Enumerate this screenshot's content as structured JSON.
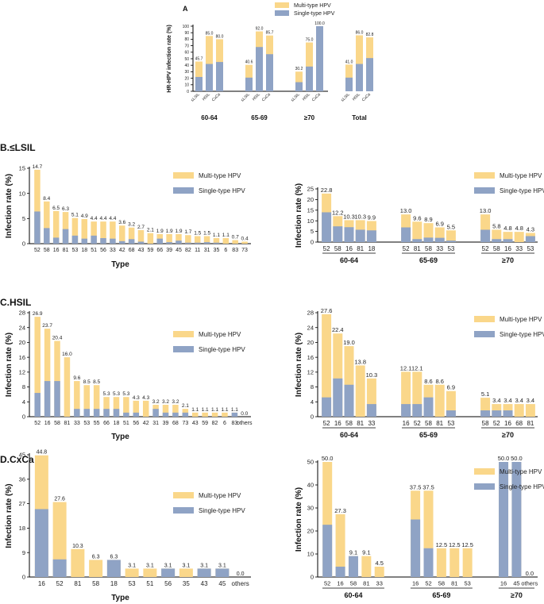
{
  "colors": {
    "multi": "#FAD78A",
    "single": "#8FA3C5",
    "axis": "#000000"
  },
  "chart_data": [
    {
      "id": "A",
      "type": "bar",
      "stacked": true,
      "panel_label": "A",
      "ylabel": "HR-HPV infection rate (%)",
      "ylim": [
        0,
        100
      ],
      "yticks": [
        0,
        10,
        20,
        30,
        40,
        50,
        60,
        70,
        80,
        90,
        100
      ],
      "legend": [
        "Multi-type HPV",
        "Single-type HPV"
      ],
      "groups": [
        {
          "name": "60-64",
          "categories": [
            "≤LSIL",
            "HSIL",
            "CxCa"
          ],
          "total": [
            45.7,
            85.0,
            80.0
          ],
          "single": [
            22.0,
            42.0,
            45.0
          ]
        },
        {
          "name": "65-69",
          "categories": [
            "≤LSIL",
            "HSIL",
            "CxCa"
          ],
          "total": [
            40.6,
            92.0,
            85.7
          ],
          "single": [
            21.0,
            68.0,
            57.0
          ]
        },
        {
          "name": "≥70",
          "categories": [
            "≤LSIL",
            "HSIL",
            "CxCa"
          ],
          "total": [
            30.2,
            75.0,
            100.0
          ],
          "single": [
            14.0,
            38.0,
            100.0
          ]
        },
        {
          "name": "Total",
          "categories": [
            "≤LSIL",
            "HSIL",
            "CxCa"
          ],
          "total": [
            41.0,
            86.0,
            82.8
          ],
          "single": [
            21.0,
            42.0,
            51.0
          ]
        }
      ]
    },
    {
      "id": "B1",
      "type": "bar",
      "stacked": true,
      "panel_label": "B.≤LSIL",
      "xlabel": "Type",
      "ylabel": "Infection rate (%)",
      "ylim": [
        0,
        15
      ],
      "yticks": [
        0,
        5,
        10,
        15
      ],
      "legend": [
        "Multi-type HPV",
        "Single-type HPV"
      ],
      "categories": [
        "52",
        "58",
        "16",
        "81",
        "53",
        "18",
        "51",
        "56",
        "33",
        "42",
        "68",
        "43",
        "59",
        "66",
        "39",
        "45",
        "82",
        "11",
        "31",
        "35",
        "6",
        "83",
        "73"
      ],
      "total": [
        14.7,
        8.4,
        6.5,
        6.3,
        5.1,
        4.9,
        4.4,
        4.4,
        4.4,
        3.6,
        3.2,
        2.7,
        2.1,
        1.9,
        1.9,
        1.9,
        1.7,
        1.5,
        1.5,
        1.1,
        1.1,
        0.7,
        0.4
      ],
      "single": [
        6.4,
        3.1,
        1.2,
        2.9,
        1.6,
        1.0,
        1.6,
        1.1,
        1.0,
        0.5,
        0.9,
        0.4,
        0.0,
        1.0,
        0.3,
        0.6,
        0.2,
        0.2,
        0.3,
        0.2,
        0.0,
        0.0,
        0.0
      ],
      "labels": [
        "14.7",
        "8.4",
        "6.5",
        "6.3",
        "5.1",
        "4.9",
        "4.4",
        "4.4",
        "4.4",
        "3.6",
        "3.2",
        "2.7",
        "2.1",
        "1.9",
        "1.9",
        "1.9",
        "1.7",
        "1.5",
        "1.5",
        "1.1",
        "1.1",
        "0.7",
        "0.4"
      ]
    },
    {
      "id": "B2",
      "type": "bar",
      "stacked": true,
      "ylabel": "Infection rate (%)",
      "ylim": [
        0,
        25
      ],
      "yticks": [
        0,
        5,
        10,
        15,
        20,
        25
      ],
      "legend": [
        "Multi-type HPV",
        "Single-type HPV"
      ],
      "groups": [
        {
          "name": "60-64",
          "categories": [
            "52",
            "58",
            "16",
            "81",
            "18"
          ],
          "total": [
            22.8,
            12.2,
            10.3,
            10.3,
            9.9
          ],
          "single": [
            14.0,
            7.4,
            7.0,
            5.8,
            5.5
          ],
          "labels": [
            "22.8",
            "12.2",
            "10.3",
            "10.3",
            "9.9"
          ]
        },
        {
          "name": "65-69",
          "categories": [
            "52",
            "81",
            "58",
            "33",
            "53"
          ],
          "total": [
            13.0,
            9.6,
            8.9,
            6.9,
            5.5
          ],
          "single": [
            6.9,
            1.4,
            2.1,
            2.0,
            0.7
          ],
          "labels": [
            "13.0",
            "9.6",
            "8.9",
            "6.9",
            "5.5"
          ]
        },
        {
          "name": "≥70",
          "categories": [
            "52",
            "58",
            "16",
            "33",
            "53"
          ],
          "total": [
            13.0,
            5.8,
            4.8,
            4.8,
            4.3
          ],
          "single": [
            5.8,
            1.4,
            1.4,
            0.0,
            2.8
          ],
          "labels": [
            "13.0",
            "5.8",
            "4.8",
            "4.8",
            "4.3"
          ]
        }
      ]
    },
    {
      "id": "C1",
      "type": "bar",
      "stacked": true,
      "panel_label": "C.HSIL",
      "xlabel": "Type",
      "ylabel": "Infection rate (%)",
      "ylim": [
        0,
        28
      ],
      "yticks": [
        0,
        4,
        8,
        12,
        16,
        20,
        24,
        28
      ],
      "legend": [
        "Multi-type HPV",
        "Single-type HPV"
      ],
      "categories": [
        "52",
        "16",
        "58",
        "81",
        "33",
        "53",
        "55",
        "66",
        "18",
        "51",
        "56",
        "42",
        "31",
        "39",
        "68",
        "73",
        "43",
        "59",
        "82",
        "6",
        "83",
        "others"
      ],
      "total": [
        26.9,
        23.7,
        20.4,
        16.0,
        9.6,
        8.5,
        8.5,
        5.3,
        5.3,
        5.3,
        4.3,
        4.3,
        3.2,
        3.2,
        3.2,
        2.1,
        1.1,
        1.1,
        1.1,
        1.1,
        1.1,
        0.0
      ],
      "single": [
        6.4,
        9.6,
        9.6,
        0.0,
        2.1,
        2.1,
        2.1,
        2.1,
        2.1,
        1.1,
        1.1,
        0.0,
        2.1,
        1.1,
        1.1,
        1.1,
        0.0,
        0.0,
        0.0,
        0.0,
        1.1,
        0.0
      ],
      "labels": [
        "26.9",
        "23.7",
        "20.4",
        "16.0",
        "9.6",
        "8.5",
        "8.5",
        "5.3",
        "5.3",
        "5.3",
        "4.3",
        "4.3",
        "3.2",
        "3.2",
        "3.2",
        "2.1",
        "1.1",
        "1.1",
        "1.1",
        "1.1",
        "1.1",
        "0.0"
      ]
    },
    {
      "id": "C2",
      "type": "bar",
      "stacked": true,
      "ylabel": "Infection rate (%)",
      "ylim": [
        0,
        28
      ],
      "yticks": [
        0,
        4,
        8,
        12,
        16,
        20,
        24,
        28
      ],
      "legend": [
        "Multi-type HPV",
        "Single-type HPV"
      ],
      "groups": [
        {
          "name": "60-64",
          "categories": [
            "52",
            "16",
            "58",
            "81",
            "33"
          ],
          "total": [
            27.6,
            22.4,
            19.0,
            13.8,
            10.3
          ],
          "single": [
            5.2,
            10.3,
            8.6,
            0.0,
            3.4
          ],
          "labels": [
            "27.6",
            "22.4",
            "19.0",
            "13.8",
            "10.3"
          ]
        },
        {
          "name": "65-69",
          "categories": [
            "16",
            "52",
            "58",
            "81",
            "53"
          ],
          "total": [
            12.1,
            12.1,
            8.6,
            8.6,
            6.9
          ],
          "single": [
            3.4,
            3.4,
            5.2,
            0.0,
            1.7
          ],
          "labels": [
            "12.1",
            "12.1",
            "8.6",
            "8.6",
            "6.9"
          ]
        },
        {
          "name": "≥70",
          "categories": [
            "58",
            "52",
            "16",
            "68",
            "81"
          ],
          "total": [
            5.1,
            3.4,
            3.4,
            3.4,
            3.4
          ],
          "single": [
            1.7,
            1.7,
            1.7,
            0.0,
            0.0
          ],
          "labels": [
            "5.1",
            "3.4",
            "3.4",
            "3.4",
            "3.4"
          ]
        }
      ]
    },
    {
      "id": "D1",
      "type": "bar",
      "stacked": true,
      "panel_label": "D.CxCa",
      "xlabel": "Type",
      "ylabel": "Infection rate (%)",
      "ylim": [
        0,
        45
      ],
      "yticks": [
        0,
        9,
        18,
        27,
        36,
        45
      ],
      "legend": [
        "Multi-type HPV",
        "Single-type HPV"
      ],
      "categories": [
        "16",
        "52",
        "81",
        "58",
        "18",
        "53",
        "51",
        "56",
        "35",
        "43",
        "45",
        "others"
      ],
      "total": [
        44.8,
        27.6,
        10.3,
        6.3,
        6.3,
        3.1,
        3.1,
        3.1,
        3.1,
        3.1,
        3.1,
        0.0
      ],
      "single": [
        25.0,
        6.5,
        0.0,
        0.0,
        6.3,
        0.0,
        0.0,
        3.1,
        0.0,
        3.1,
        3.1,
        0.0
      ],
      "labels": [
        "44.8",
        "27.6",
        "10.3",
        "6.3",
        "6.3",
        "3.1",
        "3.1",
        "3.1",
        "3.1",
        "3.1",
        "3.1",
        "0.0"
      ]
    },
    {
      "id": "D2",
      "type": "bar",
      "stacked": true,
      "ylabel": "Infection rate (%)",
      "ylim": [
        0,
        50
      ],
      "yticks": [
        0,
        10,
        20,
        30,
        40,
        50
      ],
      "legend": [
        "Multi-type HPV",
        "Single-type HPV"
      ],
      "groups": [
        {
          "name": "60-64",
          "categories": [
            "52",
            "16",
            "58",
            "81",
            "33"
          ],
          "total": [
            50.0,
            27.3,
            9.1,
            9.1,
            4.5
          ],
          "single": [
            22.7,
            4.5,
            9.1,
            0.0,
            0.0
          ],
          "labels": [
            "50.0",
            "27.3",
            "9.1",
            "9.1",
            "4.5"
          ]
        },
        {
          "name": "65-69",
          "categories": [
            "16",
            "52",
            "58",
            "81",
            "53"
          ],
          "total": [
            37.5,
            37.5,
            12.5,
            12.5,
            12.5
          ],
          "single": [
            25.0,
            12.5,
            0.0,
            0.0,
            0.0
          ],
          "labels": [
            "37.5",
            "37.5",
            "12.5",
            "12.5",
            "12.5"
          ]
        },
        {
          "name": "≥70",
          "categories": [
            "16",
            "45",
            "others"
          ],
          "total": [
            50.0,
            50.0,
            0.0
          ],
          "single": [
            50.0,
            50.0,
            0.0
          ],
          "labels": [
            "50.0",
            "50.0",
            "0.0"
          ]
        }
      ]
    }
  ]
}
